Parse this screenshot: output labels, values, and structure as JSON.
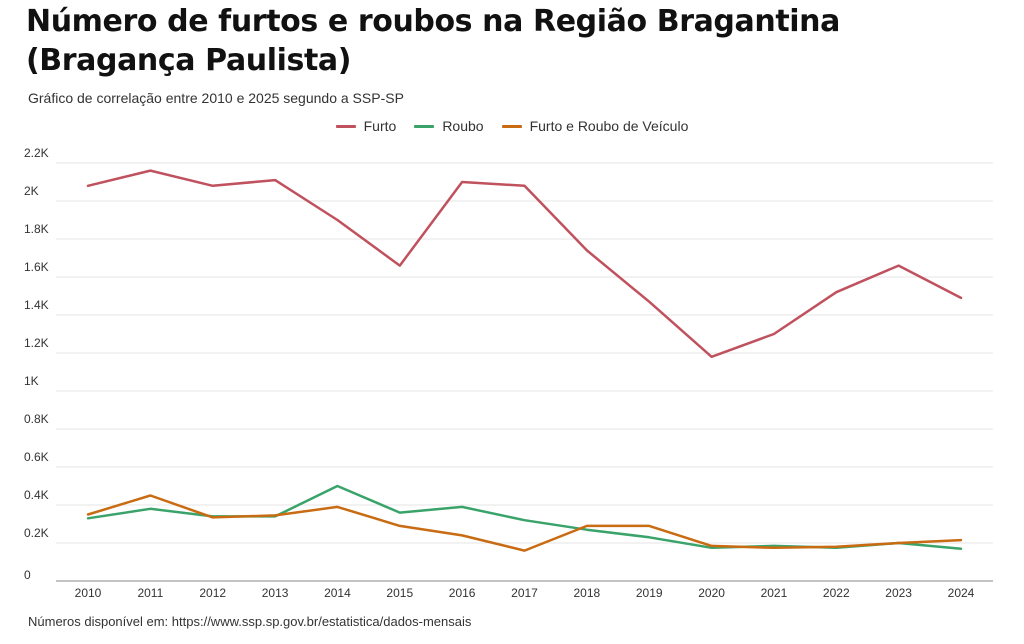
{
  "title": "Número de furtos e roubos na Região Bragantina (Bragança Paulista)",
  "subtitle": "Gráfico de correlação entre 2010 e 2025 segundo a SSP-SP",
  "footer": "Números disponível em: https://www.ssp.sp.gov.br/estatistica/dados-mensais",
  "chart_data": {
    "type": "line",
    "x": [
      "2010",
      "2011",
      "2012",
      "2013",
      "2014",
      "2015",
      "2016",
      "2017",
      "2018",
      "2019",
      "2020",
      "2021",
      "2022",
      "2023",
      "2024"
    ],
    "series": [
      {
        "name": "Furto",
        "color": "#c0515e",
        "values": [
          2080,
          2160,
          2080,
          2110,
          1900,
          1660,
          2100,
          2080,
          1740,
          1470,
          1180,
          1300,
          1520,
          1660,
          1490
        ]
      },
      {
        "name": "Roubo",
        "color": "#3aa36a",
        "values": [
          330,
          380,
          340,
          340,
          500,
          360,
          390,
          320,
          270,
          230,
          175,
          185,
          175,
          200,
          170
        ]
      },
      {
        "name": "Furto e Roubo de Veículo",
        "color": "#c96b12",
        "values": [
          350,
          450,
          335,
          345,
          390,
          290,
          240,
          160,
          290,
          290,
          185,
          175,
          180,
          200,
          215
        ]
      }
    ],
    "ylim": [
      0,
      2200
    ],
    "yticks": [
      0,
      200,
      400,
      600,
      800,
      1000,
      1200,
      1400,
      1600,
      1800,
      2000,
      2200
    ],
    "ytick_labels": [
      "0",
      "0.2K",
      "0.4K",
      "0.6K",
      "0.8K",
      "1K",
      "1.2K",
      "1.4K",
      "1.6K",
      "1.8K",
      "2K",
      "2.2K"
    ],
    "grid": true,
    "legend": "top-center",
    "xlabel": "",
    "ylabel": ""
  }
}
